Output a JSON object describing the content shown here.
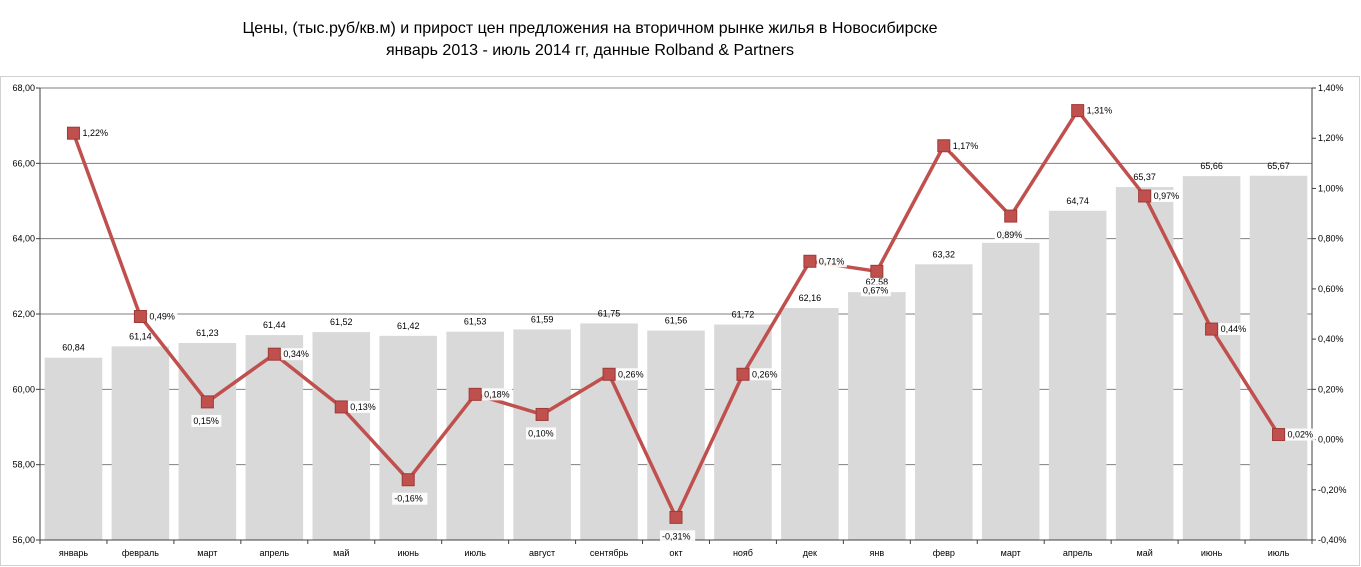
{
  "title_line1": "Цены, (тыс.руб/кв.м) и прирост цен предложения на вторичном рынке жилья в Новосибирске",
  "title_line2": "январь 2013 - июль 2014 гг, данные Rolband & Partners",
  "colors": {
    "bar": "#d9d9d9",
    "line": "#c0504d",
    "marker": "#c0504d",
    "grid": "#7f7f7f",
    "axis": "#404040"
  },
  "chart_data": {
    "type": "bar+line",
    "categories": [
      "январь",
      "февраль",
      "март",
      "апрель",
      "май",
      "июнь",
      "июль",
      "август",
      "сентябрь",
      "окт",
      "нояб",
      "дек",
      "янв",
      "февр",
      "март",
      "апрель",
      "май",
      "июнь",
      "июль"
    ],
    "series": [
      {
        "axis": "left",
        "type": "bar",
        "values": [
          60.84,
          61.14,
          61.23,
          61.44,
          61.52,
          61.42,
          61.53,
          61.59,
          61.75,
          61.56,
          61.72,
          62.16,
          62.58,
          63.32,
          63.89,
          64.74,
          65.37,
          65.66,
          65.67
        ],
        "labels": [
          "60,84",
          "61,14",
          "61,23",
          "61,44",
          "61,52",
          "61,42",
          "61,53",
          "61,59",
          "61,75",
          "61,56",
          "61,72",
          "62,16",
          "62,58",
          "63,32",
          "63,89",
          "64,74",
          "65,37",
          "65,66",
          "65,67"
        ]
      },
      {
        "axis": "right",
        "type": "line",
        "values": [
          1.22,
          0.49,
          0.15,
          0.34,
          0.13,
          -0.16,
          0.18,
          0.1,
          0.26,
          -0.31,
          0.26,
          0.71,
          0.67,
          1.17,
          0.89,
          1.31,
          0.97,
          0.44,
          0.02
        ],
        "labels": [
          "1,22%",
          "0,49%",
          "0,15%",
          "0,34%",
          "0,13%",
          "-0,16%",
          "0,18%",
          "0,10%",
          "0,26%",
          "-0,31%",
          "0,26%",
          "0,71%",
          "0,67%",
          "1,17%",
          "0,89%",
          "1,31%",
          "0,97%",
          "0,44%",
          "0,02%"
        ]
      }
    ],
    "ylim_left": [
      56,
      68
    ],
    "yticks_left": [
      "56,00",
      "58,00",
      "60,00",
      "62,00",
      "64,00",
      "66,00",
      "68,00"
    ],
    "ylim_right": [
      -0.4,
      1.4
    ],
    "yticks_right": [
      "-0,40%",
      "-0,20%",
      "0,00%",
      "0,20%",
      "0,40%",
      "0,60%",
      "0,80%",
      "1,00%",
      "1,20%",
      "1,40%"
    ],
    "grid": true
  }
}
